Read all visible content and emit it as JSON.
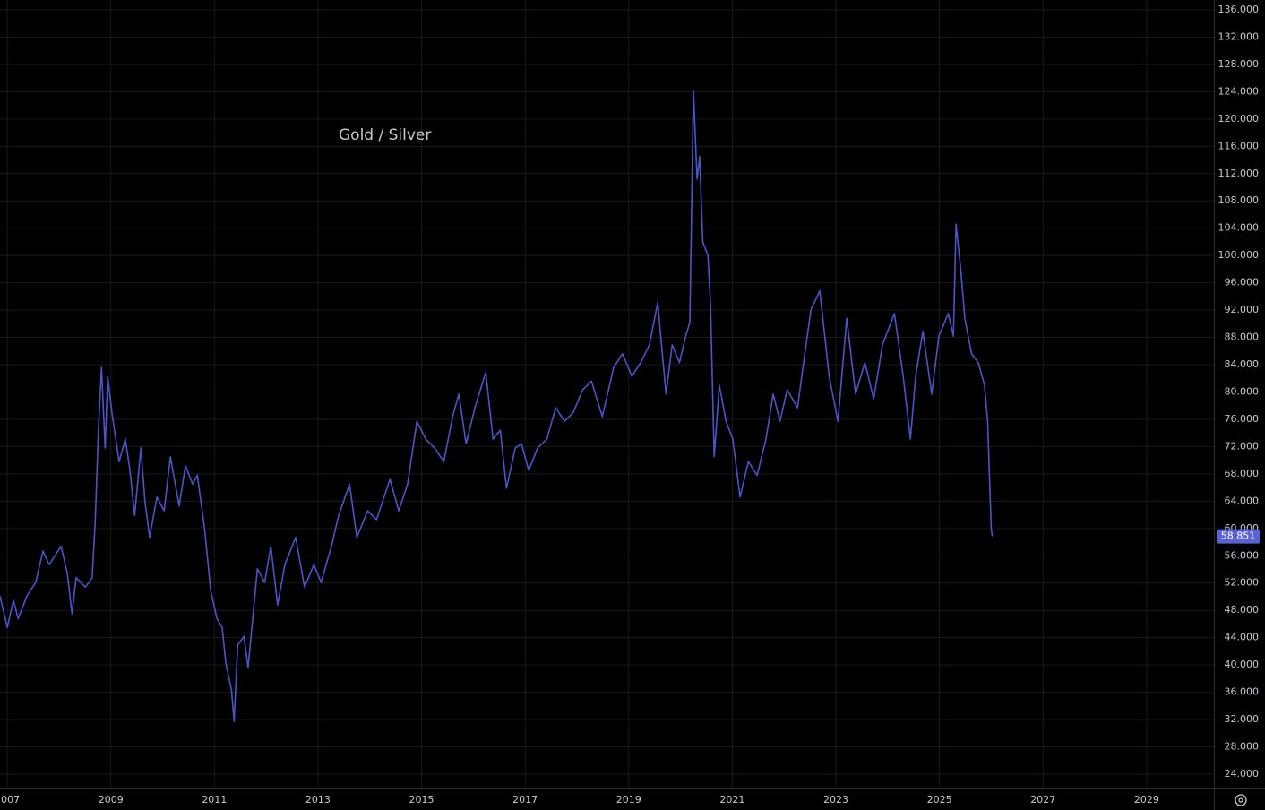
{
  "chart_data": {
    "type": "line",
    "title": "Gold / Silver",
    "x": [
      2006.86,
      2007.0,
      2007.12,
      2007.21,
      2007.38,
      2007.55,
      2007.69,
      2007.81,
      2008.04,
      2008.16,
      2008.25,
      2008.33,
      2008.51,
      2008.64,
      2008.7,
      2008.76,
      2008.82,
      2008.89,
      2008.94,
      2009.02,
      2009.16,
      2009.28,
      2009.37,
      2009.46,
      2009.58,
      2009.66,
      2009.75,
      2009.89,
      2010.03,
      2010.15,
      2010.32,
      2010.44,
      2010.58,
      2010.67,
      2010.81,
      2010.93,
      2011.05,
      2011.15,
      2011.22,
      2011.33,
      2011.38,
      2011.45,
      2011.57,
      2011.65,
      2011.74,
      2011.83,
      2011.97,
      2012.09,
      2012.22,
      2012.36,
      2012.57,
      2012.74,
      2012.92,
      2013.06,
      2013.26,
      2013.4,
      2013.61,
      2013.75,
      2013.96,
      2014.13,
      2014.39,
      2014.56,
      2014.73,
      2014.91,
      2015.08,
      2015.25,
      2015.43,
      2015.6,
      2015.72,
      2015.86,
      2016.03,
      2016.24,
      2016.38,
      2016.52,
      2016.64,
      2016.81,
      2016.93,
      2017.07,
      2017.24,
      2017.42,
      2017.59,
      2017.76,
      2017.93,
      2018.11,
      2018.28,
      2018.49,
      2018.71,
      2018.88,
      2019.06,
      2019.23,
      2019.4,
      2019.56,
      2019.72,
      2019.84,
      2019.98,
      2020.1,
      2020.18,
      2020.25,
      2020.32,
      2020.37,
      2020.43,
      2020.53,
      2020.58,
      2020.65,
      2020.75,
      2020.88,
      2021.01,
      2021.15,
      2021.31,
      2021.48,
      2021.65,
      2021.79,
      2021.92,
      2022.06,
      2022.26,
      2022.4,
      2022.52,
      2022.69,
      2022.87,
      2023.04,
      2023.21,
      2023.38,
      2023.56,
      2023.73,
      2023.9,
      2024.13,
      2024.3,
      2024.44,
      2024.54,
      2024.68,
      2024.85,
      2024.99,
      2025.17,
      2025.27,
      2025.32,
      2025.41,
      2025.49,
      2025.62,
      2025.75,
      2025.87,
      2025.93,
      2026.0,
      2026.02
    ],
    "series": [
      {
        "name": "Gold / Silver",
        "color": "#4a55c8",
        "values": [
          50.1,
          45.5,
          49.5,
          46.8,
          50.1,
          52.1,
          56.7,
          54.7,
          57.4,
          53.4,
          47.5,
          52.8,
          51.4,
          52.8,
          61.3,
          74.4,
          83.6,
          71.8,
          82.3,
          77.0,
          69.8,
          73.1,
          68.5,
          61.9,
          71.8,
          63.9,
          58.7,
          64.6,
          62.6,
          70.5,
          63.3,
          69.2,
          66.5,
          67.8,
          60.0,
          50.8,
          46.8,
          45.5,
          40.3,
          36.3,
          31.7,
          42.9,
          44.2,
          39.6,
          46.8,
          54.1,
          52.1,
          57.4,
          48.8,
          54.7,
          58.7,
          51.4,
          54.7,
          52.1,
          57.4,
          61.9,
          66.5,
          58.7,
          62.6,
          61.3,
          67.2,
          62.6,
          66.5,
          75.7,
          73.1,
          71.8,
          69.8,
          76.4,
          79.7,
          72.4,
          77.7,
          82.9,
          73.1,
          74.4,
          65.9,
          71.8,
          72.4,
          68.5,
          71.8,
          73.1,
          77.7,
          75.7,
          77.0,
          80.3,
          81.6,
          76.4,
          83.6,
          85.6,
          82.3,
          84.3,
          86.9,
          93.1,
          79.7,
          86.9,
          84.3,
          88.2,
          90.2,
          124.1,
          111.2,
          114.5,
          102.0,
          100.0,
          92.8,
          70.5,
          81.0,
          75.7,
          73.1,
          64.6,
          69.8,
          67.8,
          73.1,
          79.7,
          75.7,
          80.3,
          77.7,
          85.6,
          92.1,
          94.8,
          82.3,
          75.7,
          90.8,
          79.7,
          84.3,
          79.0,
          86.9,
          91.5,
          82.3,
          73.1,
          82.3,
          88.9,
          79.7,
          88.2,
          91.5,
          88.2,
          104.6,
          98.1,
          90.8,
          85.6,
          84.3,
          81.0,
          75.7,
          60.0,
          58.851
        ]
      }
    ],
    "xlim": [
      2006.86,
      2030.3
    ],
    "xticks": [
      2007,
      2009,
      2011,
      2013,
      2015,
      2017,
      2019,
      2021,
      2023,
      2025,
      2027,
      2029
    ],
    "ylim": [
      21.9,
      137.44
    ],
    "yticks": [
      {
        "value": 24,
        "label": "24.000"
      },
      {
        "value": 28,
        "label": "28.000"
      },
      {
        "value": 32,
        "label": "32.000"
      },
      {
        "value": 36,
        "label": "36.000"
      },
      {
        "value": 40,
        "label": "40.000"
      },
      {
        "value": 44,
        "label": "44.000"
      },
      {
        "value": 48,
        "label": "48.000"
      },
      {
        "value": 52,
        "label": "52.000"
      },
      {
        "value": 56,
        "label": "56.000"
      },
      {
        "value": 60,
        "label": "60.000"
      },
      {
        "value": 64,
        "label": "64.000"
      },
      {
        "value": 68,
        "label": "68.000"
      },
      {
        "value": 72,
        "label": "72.000"
      },
      {
        "value": 76,
        "label": "76.000"
      },
      {
        "value": 80,
        "label": "80.000"
      },
      {
        "value": 84,
        "label": "84.000"
      },
      {
        "value": 88,
        "label": "88.000"
      },
      {
        "value": 92,
        "label": "92.000"
      },
      {
        "value": 96,
        "label": "96.000"
      },
      {
        "value": 100,
        "label": "100.000"
      },
      {
        "value": 104,
        "label": "104.000"
      },
      {
        "value": 108,
        "label": "108.000"
      },
      {
        "value": 112,
        "label": "112.000"
      },
      {
        "value": 116,
        "label": "116.000"
      },
      {
        "value": 120,
        "label": "120.000"
      },
      {
        "value": 124,
        "label": "124.000"
      },
      {
        "value": 128,
        "label": "128.000"
      },
      {
        "value": 132,
        "label": "132.000"
      },
      {
        "value": 136,
        "label": "136.000"
      }
    ],
    "grid": true,
    "title_color": "#f7931a",
    "last_value_color": "#5b62d6"
  }
}
